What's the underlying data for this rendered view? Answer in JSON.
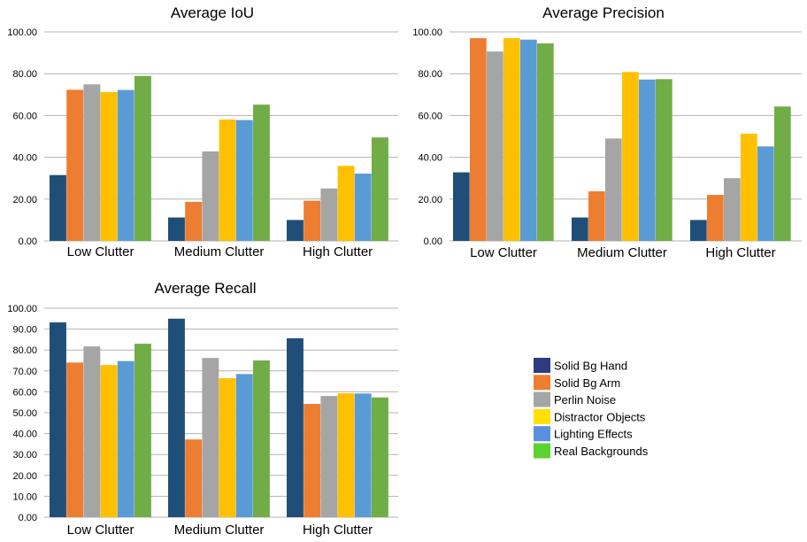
{
  "chart_data": [
    {
      "type": "bar",
      "title": "Average IoU",
      "categories": [
        "Low Clutter",
        "Medium Clutter",
        "High Clutter"
      ],
      "ylim": [
        0,
        100
      ],
      "yticks": [
        "0.00",
        "20.00",
        "40.00",
        "60.00",
        "80.00",
        "100.00"
      ],
      "series": [
        {
          "name": "Solid Bg Hand",
          "values": [
            31.5,
            11.2,
            10.0
          ]
        },
        {
          "name": "Solid Bg Arm",
          "values": [
            72.3,
            18.7,
            19.2
          ]
        },
        {
          "name": "Perlin Noise",
          "values": [
            74.9,
            42.8,
            25.1
          ]
        },
        {
          "name": "Distractor Objects",
          "values": [
            71.2,
            58.1,
            35.9
          ]
        },
        {
          "name": "Lighting Effects",
          "values": [
            72.2,
            57.8,
            32.2
          ]
        },
        {
          "name": "Real Backgrounds",
          "values": [
            78.9,
            65.2,
            49.5
          ]
        }
      ]
    },
    {
      "type": "bar",
      "title": "Average Precision",
      "categories": [
        "Low Clutter",
        "Medium Clutter",
        "High Clutter"
      ],
      "ylim": [
        0,
        100
      ],
      "yticks": [
        "0.00",
        "20.00",
        "40.00",
        "60.00",
        "80.00",
        "100.00"
      ],
      "series": [
        {
          "name": "Solid Bg Hand",
          "values": [
            32.8,
            11.2,
            10.0
          ]
        },
        {
          "name": "Solid Bg Arm",
          "values": [
            97.0,
            23.7,
            22.0
          ]
        },
        {
          "name": "Perlin Noise",
          "values": [
            90.6,
            49.0,
            30.0
          ]
        },
        {
          "name": "Distractor Objects",
          "values": [
            97.0,
            80.8,
            51.3
          ]
        },
        {
          "name": "Lighting Effects",
          "values": [
            96.3,
            77.2,
            45.2
          ]
        },
        {
          "name": "Real Backgrounds",
          "values": [
            94.5,
            77.4,
            64.3
          ]
        }
      ]
    },
    {
      "type": "bar",
      "title": "Average Recall",
      "categories": [
        "Low Clutter",
        "Medium Clutter",
        "High Clutter"
      ],
      "ylim": [
        0,
        100
      ],
      "yticks": [
        "0.00",
        "10.00",
        "20.00",
        "30.00",
        "40.00",
        "50.00",
        "60.00",
        "70.00",
        "80.00",
        "90.00",
        "100.00"
      ],
      "series": [
        {
          "name": "Solid Bg Hand",
          "values": [
            93.2,
            95.0,
            85.6
          ]
        },
        {
          "name": "Solid Bg Arm",
          "values": [
            74.0,
            37.2,
            54.2
          ]
        },
        {
          "name": "Perlin Noise",
          "values": [
            81.7,
            76.2,
            58.0
          ]
        },
        {
          "name": "Distractor Objects",
          "values": [
            72.8,
            66.5,
            59.3
          ]
        },
        {
          "name": "Lighting Effects",
          "values": [
            74.7,
            68.5,
            59.2
          ]
        },
        {
          "name": "Real Backgrounds",
          "values": [
            83.0,
            75.0,
            57.3
          ]
        }
      ]
    }
  ],
  "series_colors": [
    "#1f4e79",
    "#ed7d31",
    "#a5a5a5",
    "#ffc000",
    "#5b9bd5",
    "#70ad47"
  ],
  "legend": [
    {
      "label": "Solid Bg Hand",
      "swatch": "#2e3b80"
    },
    {
      "label": "Solid Bg Arm",
      "swatch": "#ed7d31"
    },
    {
      "label": "Perlin Noise",
      "swatch": "#a5a5a5"
    },
    {
      "label": "Distractor Objects",
      "swatch": "#ffe000"
    },
    {
      "label": "Lighting Effects",
      "swatch": "#5b8fe0"
    },
    {
      "label": "Real Backgrounds",
      "swatch": "#5cd22f"
    }
  ]
}
